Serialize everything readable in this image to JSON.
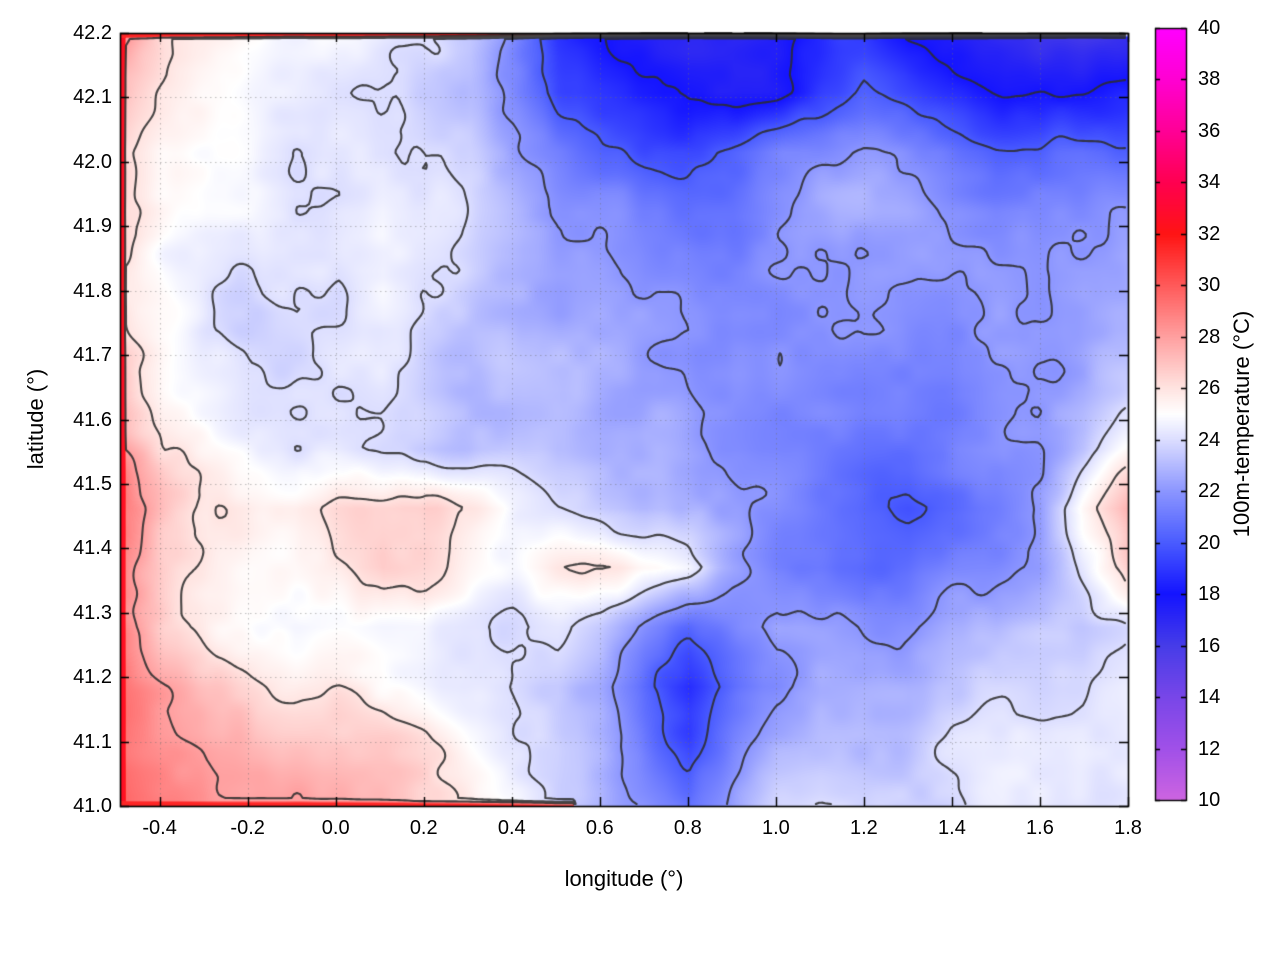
{
  "chart_data": {
    "type": "heatmap",
    "title": "",
    "xlabel": "longitude (°)",
    "ylabel": "latitude (°)",
    "colorbar_label": "100m-temperature (°C)",
    "xlim": [
      -0.49,
      1.8
    ],
    "ylim": [
      41.0,
      42.2
    ],
    "grid": "dotted",
    "xticks": [
      -0.4,
      -0.2,
      0.0,
      0.2,
      0.4,
      0.6,
      0.8,
      1.0,
      1.2,
      1.4,
      1.6,
      1.8
    ],
    "xtick_labels": [
      "-0.4",
      "-0.2",
      "0.0",
      "0.2",
      "0.4",
      "0.6",
      "0.8",
      "1.0",
      "1.2",
      "1.4",
      "1.6",
      "1.8"
    ],
    "yticks": [
      41.0,
      41.1,
      41.2,
      41.3,
      41.4,
      41.5,
      41.6,
      41.7,
      41.8,
      41.9,
      42.0,
      42.1,
      42.2
    ],
    "ytick_labels": [
      "41.0",
      "41.1",
      "41.2",
      "41.3",
      "41.4",
      "41.5",
      "41.6",
      "41.7",
      "41.8",
      "41.9",
      "42.0",
      "42.1",
      "42.2"
    ],
    "colorbar": {
      "min": 10,
      "max": 40,
      "ticks": [
        10,
        12,
        14,
        16,
        18,
        20,
        22,
        24,
        26,
        28,
        30,
        32,
        34,
        36,
        38,
        40
      ],
      "tick_labels": [
        "10",
        "12",
        "14",
        "16",
        "18",
        "20",
        "22",
        "24",
        "26",
        "28",
        "30",
        "32",
        "34",
        "36",
        "38",
        "40"
      ]
    },
    "colormap_stops": [
      [
        10,
        "#cd64e1"
      ],
      [
        12,
        "#a050e8"
      ],
      [
        14,
        "#7846e8"
      ],
      [
        16,
        "#463ce8"
      ],
      [
        18,
        "#1414ff"
      ],
      [
        20,
        "#4a5cff"
      ],
      [
        22,
        "#8c96ff"
      ],
      [
        24,
        "#dcdeff"
      ],
      [
        25,
        "#ffffff"
      ],
      [
        26,
        "#ffe4e1"
      ],
      [
        28,
        "#ffa0a0"
      ],
      [
        30,
        "#ff5a5a"
      ],
      [
        32,
        "#ff1414"
      ],
      [
        34,
        "#ff0050"
      ],
      [
        36,
        "#ff0096"
      ],
      [
        38,
        "#ff00d2"
      ],
      [
        40,
        "#ff00ff"
      ]
    ],
    "contour_levels": [
      18,
      20,
      22,
      24,
      26,
      28
    ],
    "contour_color": "#2e2e2e",
    "texture": {
      "scales": [
        150,
        55,
        20
      ],
      "amps": [
        1.1,
        0.75,
        0.4
      ]
    },
    "field": {
      "units": "°C",
      "nx": 24,
      "ny": 14,
      "lon_range": [
        -0.49,
        1.8
      ],
      "lat_range": [
        41.0,
        42.2
      ],
      "note": "temperature grid, rows ordered north (42.2) to south (41.0)",
      "values": [
        [
          28,
          26,
          25.5,
          25,
          24.5,
          24.5,
          24,
          24,
          23,
          21,
          19,
          18,
          17.5,
          17,
          17,
          17.5,
          18.5,
          19,
          18,
          17.5,
          17,
          16.5,
          16.5,
          17
        ],
        [
          27,
          25.5,
          25,
          24.5,
          24.5,
          24,
          24,
          23.5,
          23,
          21.5,
          19.5,
          18.5,
          18,
          17.5,
          17.5,
          18,
          19,
          20,
          19.5,
          19,
          18.5,
          18,
          18,
          18.5
        ],
        [
          26.5,
          25,
          24.5,
          24.5,
          24,
          24,
          24,
          23.5,
          23.5,
          22.5,
          21.5,
          20.5,
          20,
          20,
          20.5,
          21,
          21.5,
          22,
          21.5,
          21,
          20.5,
          20.5,
          21,
          21
        ],
        [
          26.5,
          25,
          24.5,
          24.5,
          24,
          24,
          24.5,
          24,
          23.5,
          23,
          22.5,
          22,
          21.5,
          21,
          21,
          21.5,
          22,
          22,
          22,
          21.5,
          21.5,
          22,
          22,
          22.5
        ],
        [
          26.5,
          25,
          24.5,
          24,
          24,
          24,
          24.5,
          24,
          23.5,
          23,
          22.5,
          22.5,
          22,
          22,
          22,
          22,
          22,
          22,
          22,
          22,
          22,
          22,
          22.5,
          23
        ],
        [
          27,
          25.5,
          24.5,
          24,
          24,
          24,
          24,
          23.5,
          23,
          23,
          22.5,
          22.5,
          22.5,
          22.5,
          22.5,
          22,
          22,
          22,
          21.5,
          21.5,
          22,
          22,
          22.5,
          23
        ],
        [
          27.5,
          25.5,
          25,
          24.5,
          24.5,
          24,
          24,
          23.5,
          23,
          23,
          23,
          22.5,
          22.5,
          22.5,
          22.5,
          22,
          21.5,
          21,
          21,
          21,
          21.5,
          22,
          22.5,
          23.5
        ],
        [
          28,
          26,
          25.5,
          25,
          24.5,
          24.5,
          24,
          24,
          23.5,
          23.5,
          23,
          23,
          23,
          22.5,
          22,
          21.5,
          21,
          20.5,
          20.5,
          21,
          21.5,
          22,
          23,
          24.5
        ],
        [
          29,
          27,
          26,
          26,
          26,
          26.5,
          27,
          27.5,
          26.5,
          25,
          24,
          23.5,
          23,
          23,
          22.5,
          22,
          21,
          20,
          19.5,
          20,
          21,
          22,
          25,
          27
        ],
        [
          29,
          27,
          26,
          25.5,
          25.5,
          26,
          27,
          26.5,
          25.5,
          25,
          25.5,
          26,
          25.5,
          25,
          23,
          21.5,
          21,
          20.5,
          20.5,
          21,
          21.5,
          22,
          24,
          26
        ],
        [
          29,
          27,
          26,
          25.5,
          25,
          25,
          25,
          25,
          24.5,
          24,
          24,
          23.5,
          22,
          21,
          22,
          23,
          22.5,
          22,
          22,
          22.5,
          22.5,
          23,
          23,
          23.5
        ],
        [
          29.5,
          28,
          27,
          26.5,
          26,
          26,
          25.5,
          25,
          24.5,
          24,
          23.5,
          22.5,
          20.5,
          19,
          20.5,
          22,
          23,
          23,
          23,
          23.5,
          23.5,
          23.5,
          23.5,
          24
        ],
        [
          30,
          28.5,
          27.5,
          27,
          27,
          27,
          26.5,
          26,
          25,
          24.5,
          24,
          23,
          21,
          19.5,
          21.5,
          23,
          23.5,
          23.5,
          23.5,
          24,
          24,
          24,
          24,
          24
        ],
        [
          30.5,
          29,
          28,
          27.5,
          27.5,
          27,
          27,
          26.5,
          26,
          25,
          24,
          23.5,
          22,
          20.5,
          22,
          23.5,
          24,
          24,
          24,
          24,
          24,
          24,
          24,
          24
        ]
      ]
    }
  }
}
